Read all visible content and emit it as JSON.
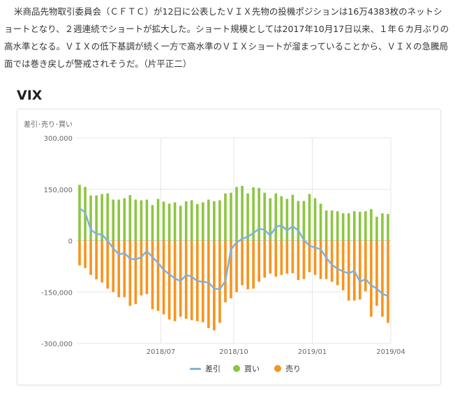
{
  "article": {
    "text": "米商品先物取引委員会（ＣＦＴＣ）が12日に公表したＶＩＸ先物の投機ポジションは16万4383枚のネットショートとなり、２週連続でショートが拡大した。ショート規模としては2017年10月17日以来、１年６カ月ぶりの高水準となる。ＶＩＸの低下基調が続く一方で高水準のＶＩＸショートが溜まっていることから、ＶＩＸの急騰局面では巻き戻しが警戒されそうだ。（片平正二）"
  },
  "chart": {
    "heading": "VIX",
    "ylabel": "差引･売り･買い"
  },
  "colors": {
    "net": "#7fb1dc",
    "long": "#8cc63f",
    "short": "#f7941d"
  },
  "chart_data": {
    "type": "bar",
    "title": "VIX",
    "ylabel": "差引･売り･買い",
    "ylim": [
      -300000,
      300000
    ],
    "yticks": [
      300000,
      150000,
      0,
      -150000,
      -300000
    ],
    "ytick_labels": [
      "300,000",
      "150,000",
      "0",
      "-150,000",
      "-300,000"
    ],
    "xtick_labels": [
      "2018/07",
      "2018/10",
      "2019/01",
      "2019/04"
    ],
    "xtick_index": [
      15,
      28,
      42,
      56
    ],
    "grid": true,
    "legend_position": "bottom",
    "series": [
      {
        "name": "買い",
        "type": "bar",
        "values": [
          163000,
          157000,
          132000,
          132000,
          136000,
          138000,
          120000,
          120000,
          124000,
          133000,
          120000,
          118000,
          120000,
          104000,
          122000,
          114000,
          108000,
          112000,
          102000,
          115000,
          118000,
          107000,
          112000,
          120000,
          115000,
          118000,
          138000,
          140000,
          157000,
          160000,
          138000,
          156000,
          154000,
          140000,
          124000,
          138000,
          130000,
          122000,
          134000,
          116000,
          116000,
          136000,
          124000,
          108000,
          88000,
          88000,
          86000,
          80000,
          80000,
          86000,
          84000,
          86000,
          92000,
          70000,
          80000,
          78000
        ]
      },
      {
        "name": "売り",
        "type": "bar",
        "values": [
          -72000,
          -80000,
          -100000,
          -113000,
          -122000,
          -140000,
          -150000,
          -165000,
          -165000,
          -190000,
          -185000,
          -160000,
          -156000,
          -200000,
          -205000,
          -215000,
          -230000,
          -235000,
          -222000,
          -228000,
          -232000,
          -235000,
          -238000,
          -255000,
          -262000,
          -240000,
          -180000,
          -168000,
          -150000,
          -130000,
          -142000,
          -140000,
          -120000,
          -108000,
          -96000,
          -105000,
          -100000,
          -96000,
          -95000,
          -115000,
          -112000,
          -92000,
          -100000,
          -112000,
          -112000,
          -120000,
          -130000,
          -145000,
          -175000,
          -175000,
          -172000,
          -148000,
          -222000,
          -190000,
          -222000,
          -240000
        ]
      },
      {
        "name": "差引",
        "type": "line",
        "values": [
          95000,
          82000,
          32000,
          20000,
          18000,
          0,
          -22000,
          -40000,
          -36000,
          -52000,
          -55000,
          -48000,
          -30000,
          -48000,
          -65000,
          -85000,
          -98000,
          -110000,
          -118000,
          -100000,
          -105000,
          -118000,
          -120000,
          -122000,
          -140000,
          -142000,
          -118000,
          -25000,
          -5000,
          5000,
          12000,
          22000,
          35000,
          32000,
          15000,
          40000,
          45000,
          30000,
          42000,
          30000,
          2000,
          -15000,
          -20000,
          -25000,
          -50000,
          -70000,
          -82000,
          -90000,
          -95000,
          -88000,
          -120000,
          -112000,
          -130000,
          -140000,
          -155000,
          -162000
        ]
      }
    ]
  }
}
